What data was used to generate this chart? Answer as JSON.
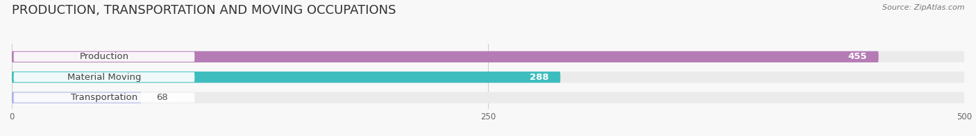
{
  "title": "PRODUCTION, TRANSPORTATION AND MOVING OCCUPATIONS",
  "source": "Source: ZipAtlas.com",
  "categories": [
    "Production",
    "Material Moving",
    "Transportation"
  ],
  "values": [
    455,
    288,
    68
  ],
  "bar_colors": [
    "#b57bb5",
    "#3dbdbd",
    "#aab0e8"
  ],
  "bar_bg_color": "#ebebeb",
  "xlim": [
    0,
    500
  ],
  "xticks": [
    0,
    250,
    500
  ],
  "title_fontsize": 13,
  "label_fontsize": 9.5,
  "value_fontsize": 9.5,
  "figsize": [
    14.06,
    1.96
  ],
  "dpi": 100
}
